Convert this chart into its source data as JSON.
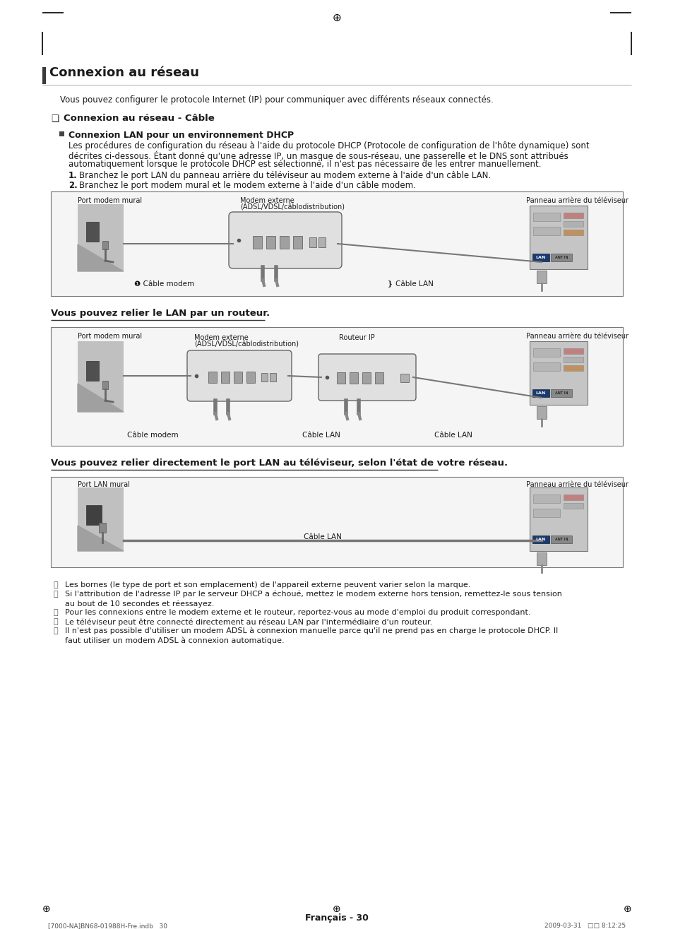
{
  "page_bg": "#ffffff",
  "title": "Connexion au réseau",
  "intro_text": "Vous pouvez configurer le protocole Internet (IP) pour communiquer avec différents réseaux connectés.",
  "section1_title": "Connexion au réseau - Câble",
  "subsection1_title": "Connexion LAN pour un environnement DHCP",
  "subsection1_body_lines": [
    "Les procédures de configuration du réseau à l'aide du protocole DHCP (Protocole de configuration de l'hôte dynamique) sont",
    "décrites ci-dessous. Étant donné qu'une adresse IP, un masque de sous-réseau, une passerelle et le DNS sont attribués",
    "automatiquement lorsque le protocole DHCP est sélectionné, il n'est pas nécessaire de les entrer manuellement."
  ],
  "step1": "Branchez le port LAN du panneau arrière du téléviseur au modem externe à l'aide d'un câble LAN.",
  "step2": "Branchez le port modem mural et le modem externe à l'aide d'un câble modem.",
  "diag1_label_left": "Port modem mural",
  "diag1_label_center1": "Modem externe",
  "diag1_label_center2": "(ADSL/VDSL/câblodistribution)",
  "diag1_label_right": "Panneau arrière du téléviseur",
  "diag1_cable1": "❶ Câble modem",
  "diag1_cable2": "❵ Câble LAN",
  "router_text": "Vous pouvez relier le LAN par un routeur.",
  "diag2_label_left": "Port modem mural",
  "diag2_label_center1": "Modem externe",
  "diag2_label_center2": "(ADSL/VDSL/câblodistribution)",
  "diag2_label_router": "Routeur IP",
  "diag2_label_right": "Panneau arrière du téléviseur",
  "diag2_cable1": "Câble modem",
  "diag2_cable2": "Câble LAN",
  "diag2_cable3": "Câble LAN",
  "direct_text": "Vous pouvez relier directement le port LAN au téléviseur, selon l'état de votre réseau.",
  "diag3_label_left": "Port LAN mural",
  "diag3_label_right": "Panneau arrière du téléviseur",
  "diag3_cable": "Câble LAN",
  "notes": [
    "Les bornes (le type de port et son emplacement) de l'appareil externe peuvent varier selon la marque.",
    "Si l'attribution de l'adresse IP par le serveur DHCP a échoué, mettez le modem externe hors tension, remettez-le sous tension au bout de 10 secondes et réessayez.",
    "Pour les connexions entre le modem externe et le routeur, reportez-vous au mode d'emploi du produit correspondant.",
    "Le téléviseur peut être connecté directement au réseau LAN par l'intermédiaire d'un routeur.",
    "Il n'est pas possible d'utiliser un modem ADSL à connexion manuelle parce qu'il ne prend pas en charge le protocole DHCP. Il faut utiliser un modem ADSL à connexion automatique."
  ],
  "note2_line2": "au bout de 10 secondes et réessayez.",
  "note5_line2": "faut utiliser un modem ADSL à connexion automatique.",
  "footer_text": "Français - 30",
  "bottom_file_text": "[7000-NA]BN68-01988H-Fre.indb   30",
  "bottom_date_text": "2009-03-31   □□ 8:12:25",
  "crosshair": "⊕",
  "lan_color": "#1a3a6e",
  "ant_color": "#888888",
  "wall_color": "#bbbbbb",
  "wall_shadow": "#999999",
  "modem_color": "#dddddd",
  "tv_color": "#cccccc",
  "tv_slot_color": "#b0b0b0",
  "tv_slot2_color": "#c0a0a0",
  "border_color": "#666666",
  "cable_color": "#555555",
  "box_bg": "#f5f5f5",
  "title_bar_color": "#555555"
}
